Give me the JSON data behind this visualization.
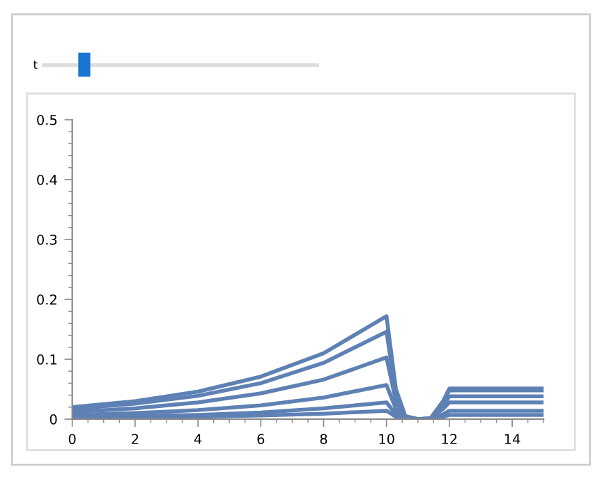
{
  "chart_data": {
    "type": "line",
    "annotations": [
      "t"
    ],
    "x": [
      0,
      2,
      4,
      6,
      8,
      10,
      10.3,
      10.6,
      11,
      11.4,
      11.8,
      12,
      15
    ],
    "series": [
      {
        "color": "#5e81b5",
        "values": [
          0.02,
          0.03,
          0.046,
          0.071,
          0.11,
          0.172,
          0.05,
          0.005,
          0,
          0.001,
          0.03,
          0.051,
          0.051
        ]
      },
      {
        "color": "#5e81b5",
        "values": [
          0.017,
          0.026,
          0.039,
          0.06,
          0.094,
          0.146,
          0.043,
          0.004,
          0,
          0.001,
          0.029,
          0.048,
          0.048
        ]
      },
      {
        "color": "#5e81b5",
        "values": [
          0.012,
          0.018,
          0.028,
          0.043,
          0.066,
          0.103,
          0.03,
          0.003,
          0,
          0.001,
          0.023,
          0.038,
          0.038
        ]
      },
      {
        "color": "#5e81b5",
        "values": [
          0.007,
          0.01,
          0.015,
          0.023,
          0.036,
          0.057,
          0.017,
          0.002,
          0,
          0.001,
          0.017,
          0.028,
          0.028
        ]
      },
      {
        "color": "#5e81b5",
        "values": [
          0.003,
          0.005,
          0.007,
          0.011,
          0.018,
          0.028,
          0.008,
          0.001,
          0,
          0,
          0.008,
          0.014,
          0.014
        ]
      },
      {
        "color": "#5e81b5",
        "values": [
          0.002,
          0.002,
          0.004,
          0.006,
          0.009,
          0.014,
          0.004,
          0.001,
          0,
          0,
          0.004,
          0.007,
          0.007
        ]
      }
    ],
    "xlim": [
      0,
      15
    ],
    "ylim": [
      0,
      0.5
    ],
    "xticks": [
      0,
      2,
      4,
      6,
      8,
      10,
      12,
      14
    ],
    "yticks": [
      0,
      0.1,
      0.2,
      0.3,
      0.4,
      0.5
    ],
    "grid": false,
    "legend": false,
    "marker": "none",
    "line_style": "solid"
  }
}
